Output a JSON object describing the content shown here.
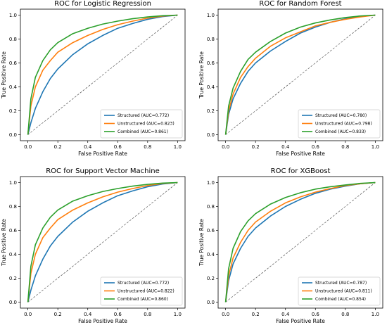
{
  "chart_data": [
    {
      "type": "line",
      "title": "ROC for Logistic Regression",
      "xlabel": "False Positive Rate",
      "ylabel": "True Positive Rate",
      "xlim": [
        -0.05,
        1.05
      ],
      "ylim": [
        -0.05,
        1.05
      ],
      "xticks": [
        "0.0",
        "0.2",
        "0.4",
        "0.6",
        "0.8",
        "1.0"
      ],
      "yticks": [
        "0.0",
        "0.2",
        "0.4",
        "0.6",
        "0.8",
        "1.0"
      ],
      "grid": false,
      "legend_position": "lower-right",
      "diagonal_reference": true,
      "x": [
        0,
        0.02,
        0.05,
        0.1,
        0.15,
        0.2,
        0.3,
        0.4,
        0.5,
        0.6,
        0.7,
        0.8,
        0.9,
        1.0
      ],
      "series": [
        {
          "name": "Structured (AUC=0.772)",
          "color": "#1f77b4",
          "values": [
            0,
            0.1,
            0.22,
            0.36,
            0.47,
            0.55,
            0.67,
            0.76,
            0.83,
            0.89,
            0.93,
            0.965,
            0.988,
            1.0
          ]
        },
        {
          "name": "Unstructured (AUC=0.823)",
          "color": "#ff7f0e",
          "values": [
            0,
            0.24,
            0.4,
            0.54,
            0.62,
            0.69,
            0.77,
            0.83,
            0.88,
            0.92,
            0.95,
            0.975,
            0.992,
            1.0
          ]
        },
        {
          "name": "Combined (AUC=0.861)",
          "color": "#2ca02c",
          "values": [
            0,
            0.3,
            0.48,
            0.62,
            0.71,
            0.77,
            0.845,
            0.89,
            0.925,
            0.95,
            0.97,
            0.985,
            0.995,
            1.0
          ]
        }
      ]
    },
    {
      "type": "line",
      "title": "ROC for Random Forest",
      "xlabel": "False Positive Rate",
      "ylabel": "True Positive Rate",
      "xlim": [
        -0.05,
        1.05
      ],
      "ylim": [
        -0.05,
        1.05
      ],
      "xticks": [
        "0.0",
        "0.2",
        "0.4",
        "0.6",
        "0.8",
        "1.0"
      ],
      "yticks": [
        "0.0",
        "0.2",
        "0.4",
        "0.6",
        "0.8",
        "1.0"
      ],
      "grid": false,
      "legend_position": "lower-right",
      "diagonal_reference": true,
      "x": [
        0,
        0.02,
        0.05,
        0.1,
        0.15,
        0.2,
        0.3,
        0.4,
        0.5,
        0.6,
        0.7,
        0.8,
        0.9,
        1.0
      ],
      "series": [
        {
          "name": "Structured (AUC=0.780)",
          "color": "#1f77b4",
          "values": [
            0,
            0.17,
            0.3,
            0.43,
            0.53,
            0.6,
            0.7,
            0.78,
            0.85,
            0.9,
            0.94,
            0.97,
            0.99,
            1.0
          ]
        },
        {
          "name": "Unstructured (AUC=0.798)",
          "color": "#ff7f0e",
          "values": [
            0,
            0.2,
            0.34,
            0.48,
            0.57,
            0.64,
            0.74,
            0.81,
            0.86,
            0.91,
            0.94,
            0.965,
            0.985,
            1.0
          ]
        },
        {
          "name": "Combined (AUC=0.833)",
          "color": "#2ca02c",
          "values": [
            0,
            0.24,
            0.39,
            0.53,
            0.63,
            0.69,
            0.78,
            0.85,
            0.9,
            0.935,
            0.96,
            0.98,
            0.993,
            1.0
          ]
        }
      ]
    },
    {
      "type": "line",
      "title": "ROC for Support Vector Machine",
      "xlabel": "False Positive Rate",
      "ylabel": "True Positive Rate",
      "xlim": [
        -0.05,
        1.05
      ],
      "ylim": [
        -0.05,
        1.05
      ],
      "xticks": [
        "0.0",
        "0.2",
        "0.4",
        "0.6",
        "0.8",
        "1.0"
      ],
      "yticks": [
        "0.0",
        "0.2",
        "0.4",
        "0.6",
        "0.8",
        "1.0"
      ],
      "grid": false,
      "legend_position": "lower-right",
      "diagonal_reference": true,
      "x": [
        0,
        0.02,
        0.05,
        0.1,
        0.15,
        0.2,
        0.3,
        0.4,
        0.5,
        0.6,
        0.7,
        0.8,
        0.9,
        1.0
      ],
      "series": [
        {
          "name": "Structured (AUC=0.772)",
          "color": "#1f77b4",
          "values": [
            0,
            0.1,
            0.22,
            0.36,
            0.47,
            0.55,
            0.67,
            0.76,
            0.83,
            0.89,
            0.93,
            0.965,
            0.988,
            1.0
          ]
        },
        {
          "name": "Unstructured (AUC=0.822)",
          "color": "#ff7f0e",
          "values": [
            0,
            0.24,
            0.4,
            0.54,
            0.62,
            0.69,
            0.77,
            0.83,
            0.88,
            0.92,
            0.95,
            0.975,
            0.992,
            1.0
          ]
        },
        {
          "name": "Combined (AUC=0.860)",
          "color": "#2ca02c",
          "values": [
            0,
            0.3,
            0.48,
            0.62,
            0.71,
            0.77,
            0.845,
            0.89,
            0.925,
            0.95,
            0.97,
            0.985,
            0.995,
            1.0
          ]
        }
      ]
    },
    {
      "type": "line",
      "title": "ROC for XGBoost",
      "xlabel": "False Positive Rate",
      "ylabel": "True Positive Rate",
      "xlim": [
        -0.05,
        1.05
      ],
      "ylim": [
        -0.05,
        1.05
      ],
      "xticks": [
        "0.0",
        "0.2",
        "0.4",
        "0.6",
        "0.8",
        "1.0"
      ],
      "yticks": [
        "0.0",
        "0.2",
        "0.4",
        "0.6",
        "0.8",
        "1.0"
      ],
      "grid": false,
      "legend_position": "lower-right",
      "diagonal_reference": true,
      "x": [
        0,
        0.02,
        0.05,
        0.1,
        0.15,
        0.2,
        0.3,
        0.4,
        0.5,
        0.6,
        0.7,
        0.8,
        0.9,
        1.0
      ],
      "series": [
        {
          "name": "Structured (AUC=0.787)",
          "color": "#1f77b4",
          "values": [
            0,
            0.18,
            0.32,
            0.45,
            0.55,
            0.62,
            0.72,
            0.8,
            0.86,
            0.91,
            0.945,
            0.97,
            0.99,
            1.0
          ]
        },
        {
          "name": "Unstructured (AUC=0.811)",
          "color": "#ff7f0e",
          "values": [
            0,
            0.22,
            0.37,
            0.5,
            0.6,
            0.67,
            0.76,
            0.83,
            0.88,
            0.92,
            0.95,
            0.975,
            0.99,
            1.0
          ]
        },
        {
          "name": "Combined (AUC=0.854)",
          "color": "#2ca02c",
          "values": [
            0,
            0.28,
            0.45,
            0.59,
            0.68,
            0.74,
            0.82,
            0.875,
            0.915,
            0.945,
            0.965,
            0.98,
            0.993,
            1.0
          ]
        }
      ]
    }
  ]
}
